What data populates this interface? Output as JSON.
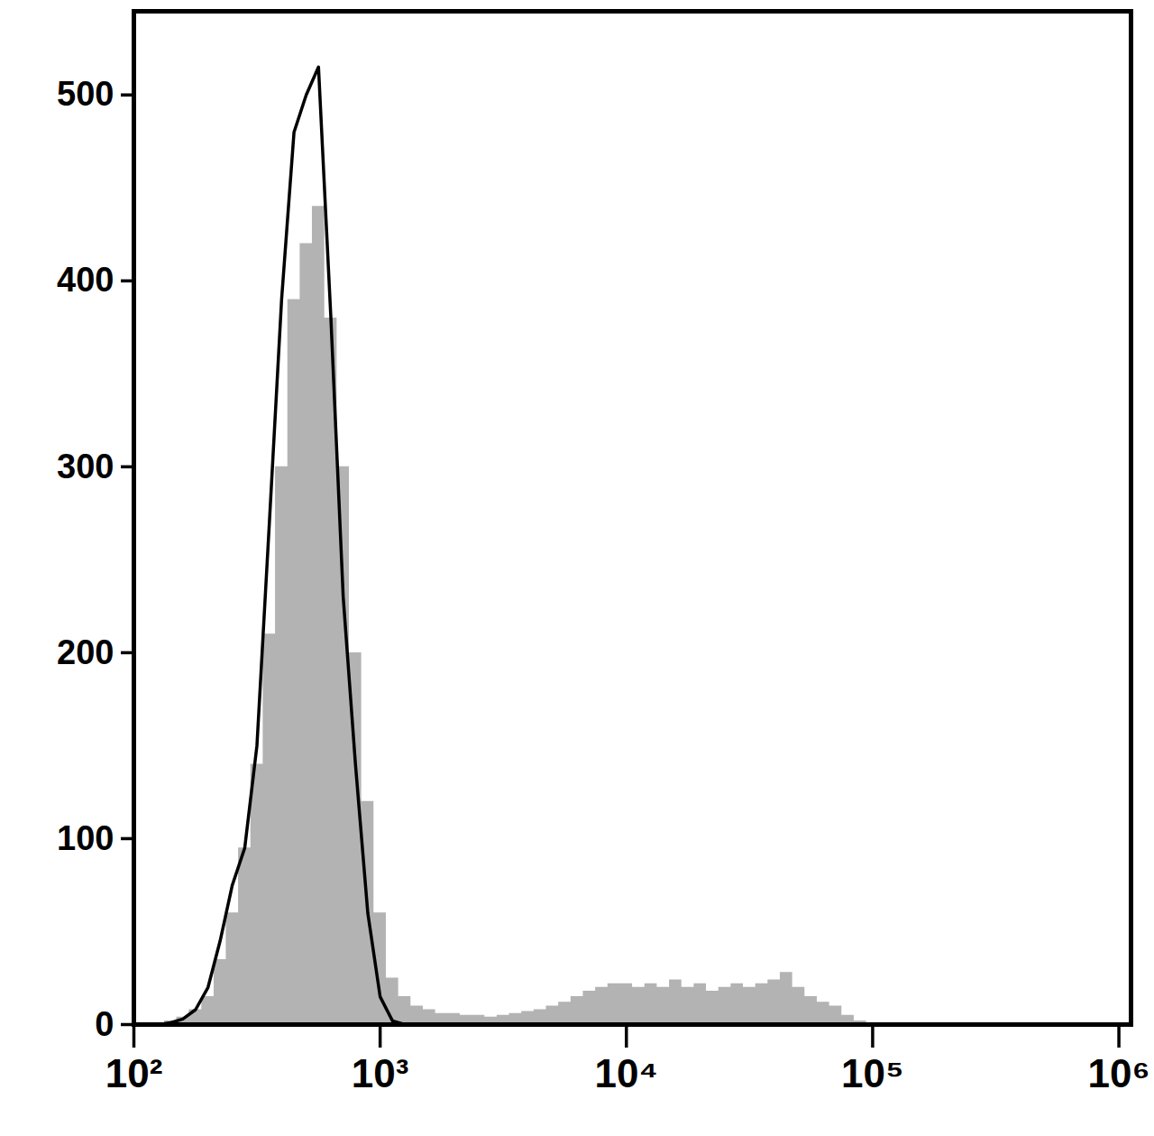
{
  "chart_data": {
    "type": "histogram",
    "log": "x",
    "x": [
      100,
      112,
      126,
      141,
      158,
      178,
      200,
      224,
      251,
      282,
      316,
      355,
      398,
      447,
      501,
      562,
      631,
      708,
      794,
      891,
      1000,
      1122,
      1259,
      1413,
      1585,
      1778,
      1995,
      2239,
      2512,
      2818,
      3162,
      3548,
      3981,
      4467,
      5012,
      5623,
      6310,
      7079,
      7943,
      8913,
      10000,
      11220,
      12589,
      14125,
      15849,
      17783,
      19953,
      22387,
      25119,
      28184,
      31623,
      35481,
      39811,
      44668,
      50119,
      56234,
      63096,
      70795,
      79433,
      89125,
      100000,
      112202
    ],
    "series": [
      {
        "type": "area",
        "color": "#b3b3b3",
        "values": [
          0,
          0,
          1,
          2,
          4,
          8,
          15,
          35,
          60,
          95,
          140,
          210,
          300,
          390,
          420,
          440,
          380,
          300,
          200,
          120,
          60,
          25,
          15,
          10,
          8,
          6,
          6,
          5,
          5,
          4,
          5,
          6,
          7,
          8,
          10,
          12,
          15,
          18,
          20,
          22,
          22,
          20,
          22,
          20,
          24,
          20,
          22,
          18,
          20,
          22,
          20,
          22,
          24,
          28,
          20,
          15,
          12,
          10,
          5,
          2,
          1,
          0
        ]
      },
      {
        "type": "line",
        "color": "#000000",
        "values": [
          0,
          0,
          0,
          1,
          3,
          8,
          20,
          45,
          75,
          95,
          150,
          270,
          390,
          480,
          500,
          515,
          380,
          230,
          140,
          60,
          15,
          2,
          0,
          0,
          0,
          0,
          0,
          0,
          0,
          0,
          0,
          0,
          0,
          0,
          0,
          0,
          0,
          0,
          0,
          0,
          0,
          0,
          0,
          0,
          0,
          0,
          0,
          0,
          0,
          0,
          0,
          0,
          0,
          0,
          0,
          0,
          0,
          0,
          0,
          0,
          0,
          0
        ]
      }
    ],
    "xlim": [
      100,
      1120000
    ],
    "xticks": [
      {
        "value": 100,
        "label": "10²"
      },
      {
        "value": 1000,
        "label": "10³"
      },
      {
        "value": 10000,
        "label": "10⁴"
      },
      {
        "value": 100000,
        "label": "10⁵"
      },
      {
        "value": 1000000,
        "label": "10⁶"
      }
    ],
    "ylim": [
      0,
      545
    ],
    "yticks": [
      0,
      100,
      200,
      300,
      400,
      500
    ],
    "grid": false
  }
}
